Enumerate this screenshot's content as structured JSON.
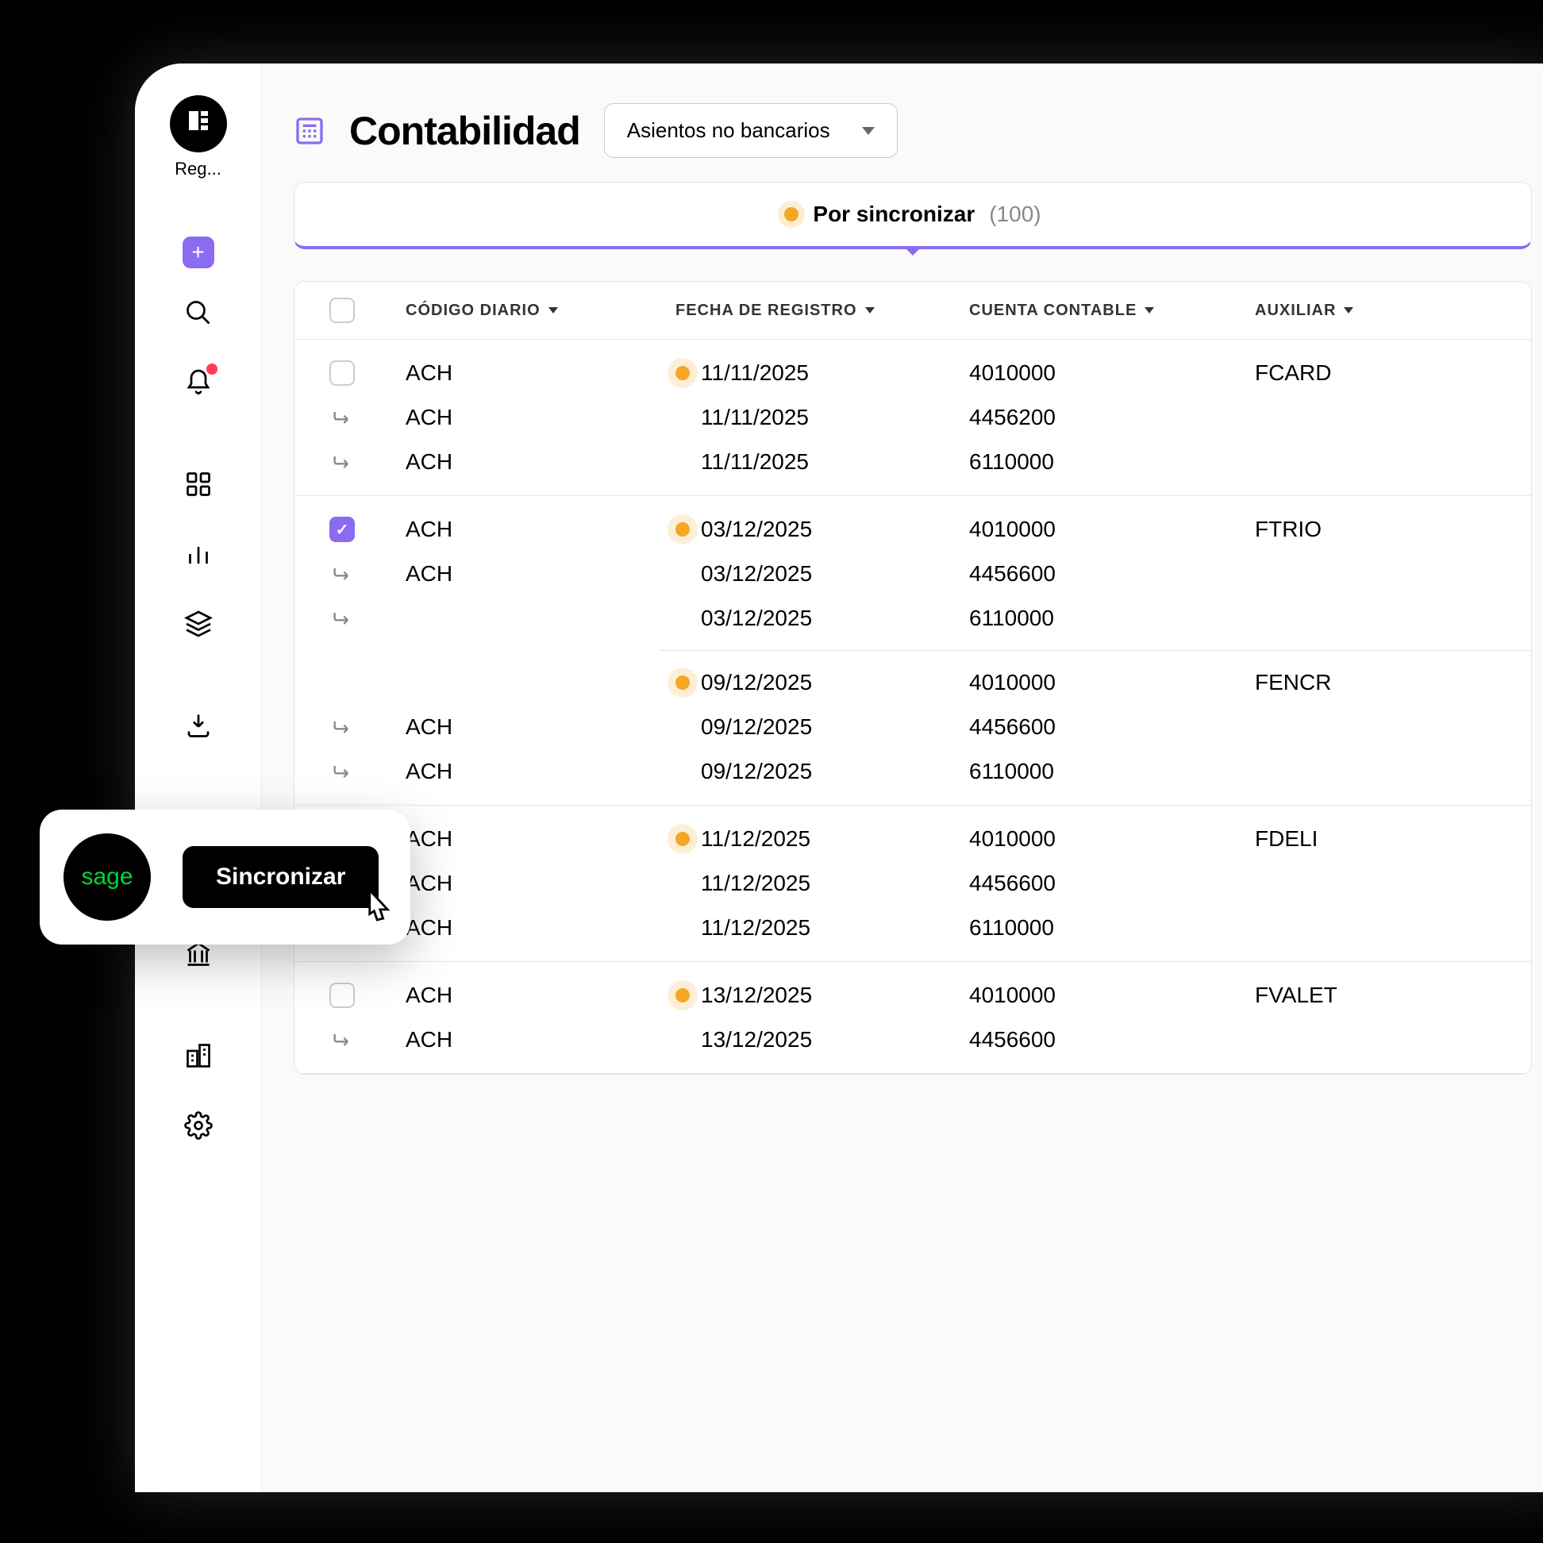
{
  "sidebar": {
    "logo_label": "Reg..."
  },
  "header": {
    "title": "Contabilidad",
    "dropdown_value": "Asientos no bancarios"
  },
  "filter": {
    "label": "Por sincronizar",
    "count": "(100)"
  },
  "columns": {
    "code": "CÓDIGO DIARIO",
    "date": "FECHA DE REGISTRO",
    "account": "CUENTA CONTABLE",
    "aux": "AUXILIAR"
  },
  "colors": {
    "accent": "#8b6cf0",
    "status_dot": "#f5a623",
    "notification": "#ff3b5c",
    "sage_green": "#00d639",
    "background": "#fafafa",
    "border": "#e5e5e5"
  },
  "groups": [
    {
      "checked": false,
      "rows": [
        {
          "child": false,
          "code": "ACH",
          "dot": true,
          "date": "11/11/2025",
          "account": "4010000",
          "aux": "FCARD"
        },
        {
          "child": true,
          "code": "ACH",
          "dot": false,
          "date": "11/11/2025",
          "account": "4456200",
          "aux": ""
        },
        {
          "child": true,
          "code": "ACH",
          "dot": false,
          "date": "11/11/2025",
          "account": "6110000",
          "aux": ""
        }
      ]
    },
    {
      "checked": true,
      "rows": [
        {
          "child": false,
          "code": "ACH",
          "dot": true,
          "date": "03/12/2025",
          "account": "4010000",
          "aux": "FTRIO"
        },
        {
          "child": true,
          "code": "ACH",
          "dot": false,
          "date": "03/12/2025",
          "account": "4456600",
          "aux": ""
        },
        {
          "child": true,
          "code": "",
          "dot": false,
          "date": "03/12/2025",
          "account": "6110000",
          "aux": ""
        }
      ],
      "divider_after": true,
      "rows2": [
        {
          "child": false,
          "code": "",
          "dot": true,
          "date": "09/12/2025",
          "account": "4010000",
          "aux": "FENCR"
        },
        {
          "child": true,
          "code": "ACH",
          "dot": false,
          "date": "09/12/2025",
          "account": "4456600",
          "aux": ""
        },
        {
          "child": true,
          "code": "ACH",
          "dot": false,
          "date": "09/12/2025",
          "account": "6110000",
          "aux": ""
        }
      ]
    },
    {
      "checked": false,
      "rows": [
        {
          "child": false,
          "code": "ACH",
          "dot": true,
          "date": "11/12/2025",
          "account": "4010000",
          "aux": "FDELI"
        },
        {
          "child": true,
          "code": "ACH",
          "dot": false,
          "date": "11/12/2025",
          "account": "4456600",
          "aux": ""
        },
        {
          "child": true,
          "code": "ACH",
          "dot": false,
          "date": "11/12/2025",
          "account": "6110000",
          "aux": ""
        }
      ]
    },
    {
      "checked": false,
      "rows": [
        {
          "child": false,
          "code": "ACH",
          "dot": true,
          "date": "13/12/2025",
          "account": "4010000",
          "aux": "FVALET"
        },
        {
          "child": true,
          "code": "ACH",
          "dot": false,
          "date": "13/12/2025",
          "account": "4456600",
          "aux": ""
        }
      ]
    }
  ],
  "popup": {
    "brand": "sage",
    "button": "Sincronizar"
  }
}
